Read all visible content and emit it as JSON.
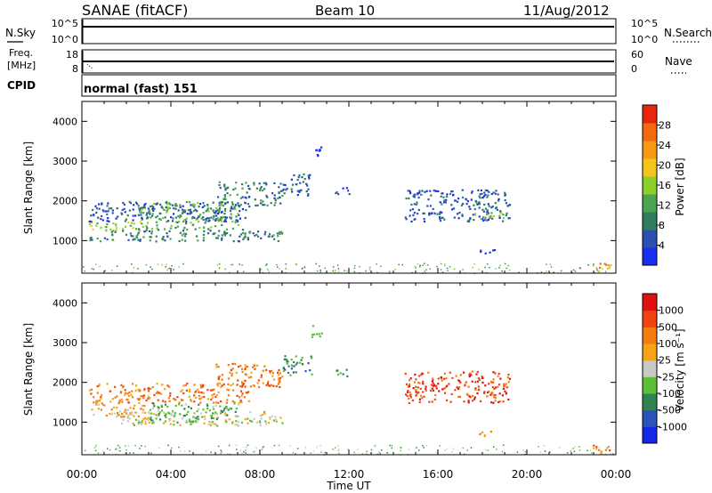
{
  "header": {
    "radar": "SANAE (fitACF)",
    "beam": "Beam 10",
    "date": "11/Aug/2012"
  },
  "colors": {
    "power_scale": [
      "#1a2ef0",
      "#2e4fb2",
      "#2f7f5c",
      "#4aa552",
      "#8ccf2b",
      "#f3c51a",
      "#f79b14",
      "#f26a10",
      "#e8260e"
    ],
    "velocity_scale": [
      "#1526e8",
      "#2e53b8",
      "#2f8352",
      "#58c234",
      "#c8c8c8",
      "#f7a414",
      "#f47b10",
      "#ef4410",
      "#e01010"
    ]
  },
  "chart_data": [
    {
      "type": "line",
      "name": "nsky-nsearch",
      "left_label": "N.Sky",
      "right_label": "N.Search",
      "left_ticks": [
        "10^5",
        "10^0"
      ],
      "right_ticks": [
        "10^5",
        "10^0"
      ]
    },
    {
      "type": "line",
      "name": "freq-nave",
      "left_label_1": "Freq.",
      "left_label_2": "[MHz]",
      "left_ticks": [
        "18",
        "8"
      ],
      "right_label": "Nave",
      "right_ticks": [
        "60",
        "0"
      ]
    },
    {
      "type": "table",
      "name": "cpid",
      "label": "CPID",
      "value": "normal (fast) 151"
    },
    {
      "type": "heatmap",
      "name": "power",
      "ylabel": "Slant Range [km]",
      "yticks": [
        "4000",
        "3000",
        "2000",
        "1000"
      ],
      "ylim": [
        180,
        4500
      ],
      "xlim": [
        0,
        24
      ],
      "colorbar_label": "Power [dB]",
      "colorbar_ticks": [
        "28",
        "24",
        "20",
        "16",
        "12",
        "8",
        "4"
      ],
      "regions": [
        {
          "t0": 0.3,
          "t1": 9.0,
          "r0": 1000,
          "r1": 1300,
          "level": 2
        },
        {
          "t0": 0.3,
          "t1": 2.8,
          "r0": 1250,
          "r1": 1500,
          "level": 4
        },
        {
          "t0": 0.3,
          "t1": 7.5,
          "r0": 1500,
          "r1": 2000,
          "level": 1
        },
        {
          "t0": 2.5,
          "t1": 7.0,
          "r0": 1300,
          "r1": 2000,
          "level": 3
        },
        {
          "t0": 6.0,
          "t1": 9.0,
          "r0": 1900,
          "r1": 2500,
          "level": 2
        },
        {
          "t0": 9.0,
          "t1": 10.3,
          "r0": 2150,
          "r1": 2700,
          "level": 1
        },
        {
          "t0": 10.3,
          "t1": 10.8,
          "r0": 3150,
          "r1": 3450,
          "level": 0
        },
        {
          "t0": 11.3,
          "t1": 12.0,
          "r0": 2150,
          "r1": 2350,
          "level": 1
        },
        {
          "t0": 14.5,
          "t1": 19.2,
          "r0": 1500,
          "r1": 2300,
          "level": 1
        },
        {
          "t0": 17.5,
          "t1": 19.0,
          "r0": 1550,
          "r1": 1750,
          "level": 4
        },
        {
          "t0": 17.8,
          "t1": 18.6,
          "r0": 650,
          "r1": 800,
          "level": 0
        },
        {
          "t0": 22.9,
          "t1": 23.7,
          "r0": 200,
          "r1": 450,
          "level": 6
        }
      ]
    },
    {
      "type": "heatmap",
      "name": "velocity",
      "ylabel": "Slant Range [km]",
      "yticks": [
        "4000",
        "3000",
        "2000",
        "1000"
      ],
      "ylim": [
        180,
        4500
      ],
      "xlim": [
        0,
        24
      ],
      "xticks": [
        "00:00",
        "04:00",
        "08:00",
        "12:00",
        "16:00",
        "20:00",
        "00:00"
      ],
      "xlabel": "Time UT",
      "colorbar_label": "Velocity [m s⁻¹]",
      "colorbar_ticks": [
        "1000",
        "500",
        "100",
        "25",
        "-25",
        "-100",
        "-500",
        "-1000"
      ],
      "regions": [
        {
          "t0": 1.5,
          "t1": 9.0,
          "r0": 930,
          "r1": 1280,
          "level": 4
        },
        {
          "t0": 0.3,
          "t1": 2.8,
          "r0": 1150,
          "r1": 1500,
          "level": 5
        },
        {
          "t0": 0.3,
          "t1": 7.5,
          "r0": 1500,
          "r1": 2000,
          "level": 6
        },
        {
          "t0": 3.0,
          "t1": 7.0,
          "r0": 1000,
          "r1": 1500,
          "level": 3
        },
        {
          "t0": 6.0,
          "t1": 9.0,
          "r0": 1900,
          "r1": 2500,
          "level": 6
        },
        {
          "t0": 9.0,
          "t1": 10.3,
          "r0": 2150,
          "r1": 2700,
          "level": 2
        },
        {
          "t0": 10.3,
          "t1": 10.8,
          "r0": 3150,
          "r1": 3450,
          "level": 3
        },
        {
          "t0": 11.3,
          "t1": 12.0,
          "r0": 2150,
          "r1": 2350,
          "level": 2
        },
        {
          "t0": 14.5,
          "t1": 19.2,
          "r0": 1500,
          "r1": 2300,
          "level": 7
        },
        {
          "t0": 17.8,
          "t1": 18.6,
          "r0": 650,
          "r1": 800,
          "level": 5
        },
        {
          "t0": 22.9,
          "t1": 23.7,
          "r0": 200,
          "r1": 450,
          "level": 6
        }
      ]
    }
  ]
}
